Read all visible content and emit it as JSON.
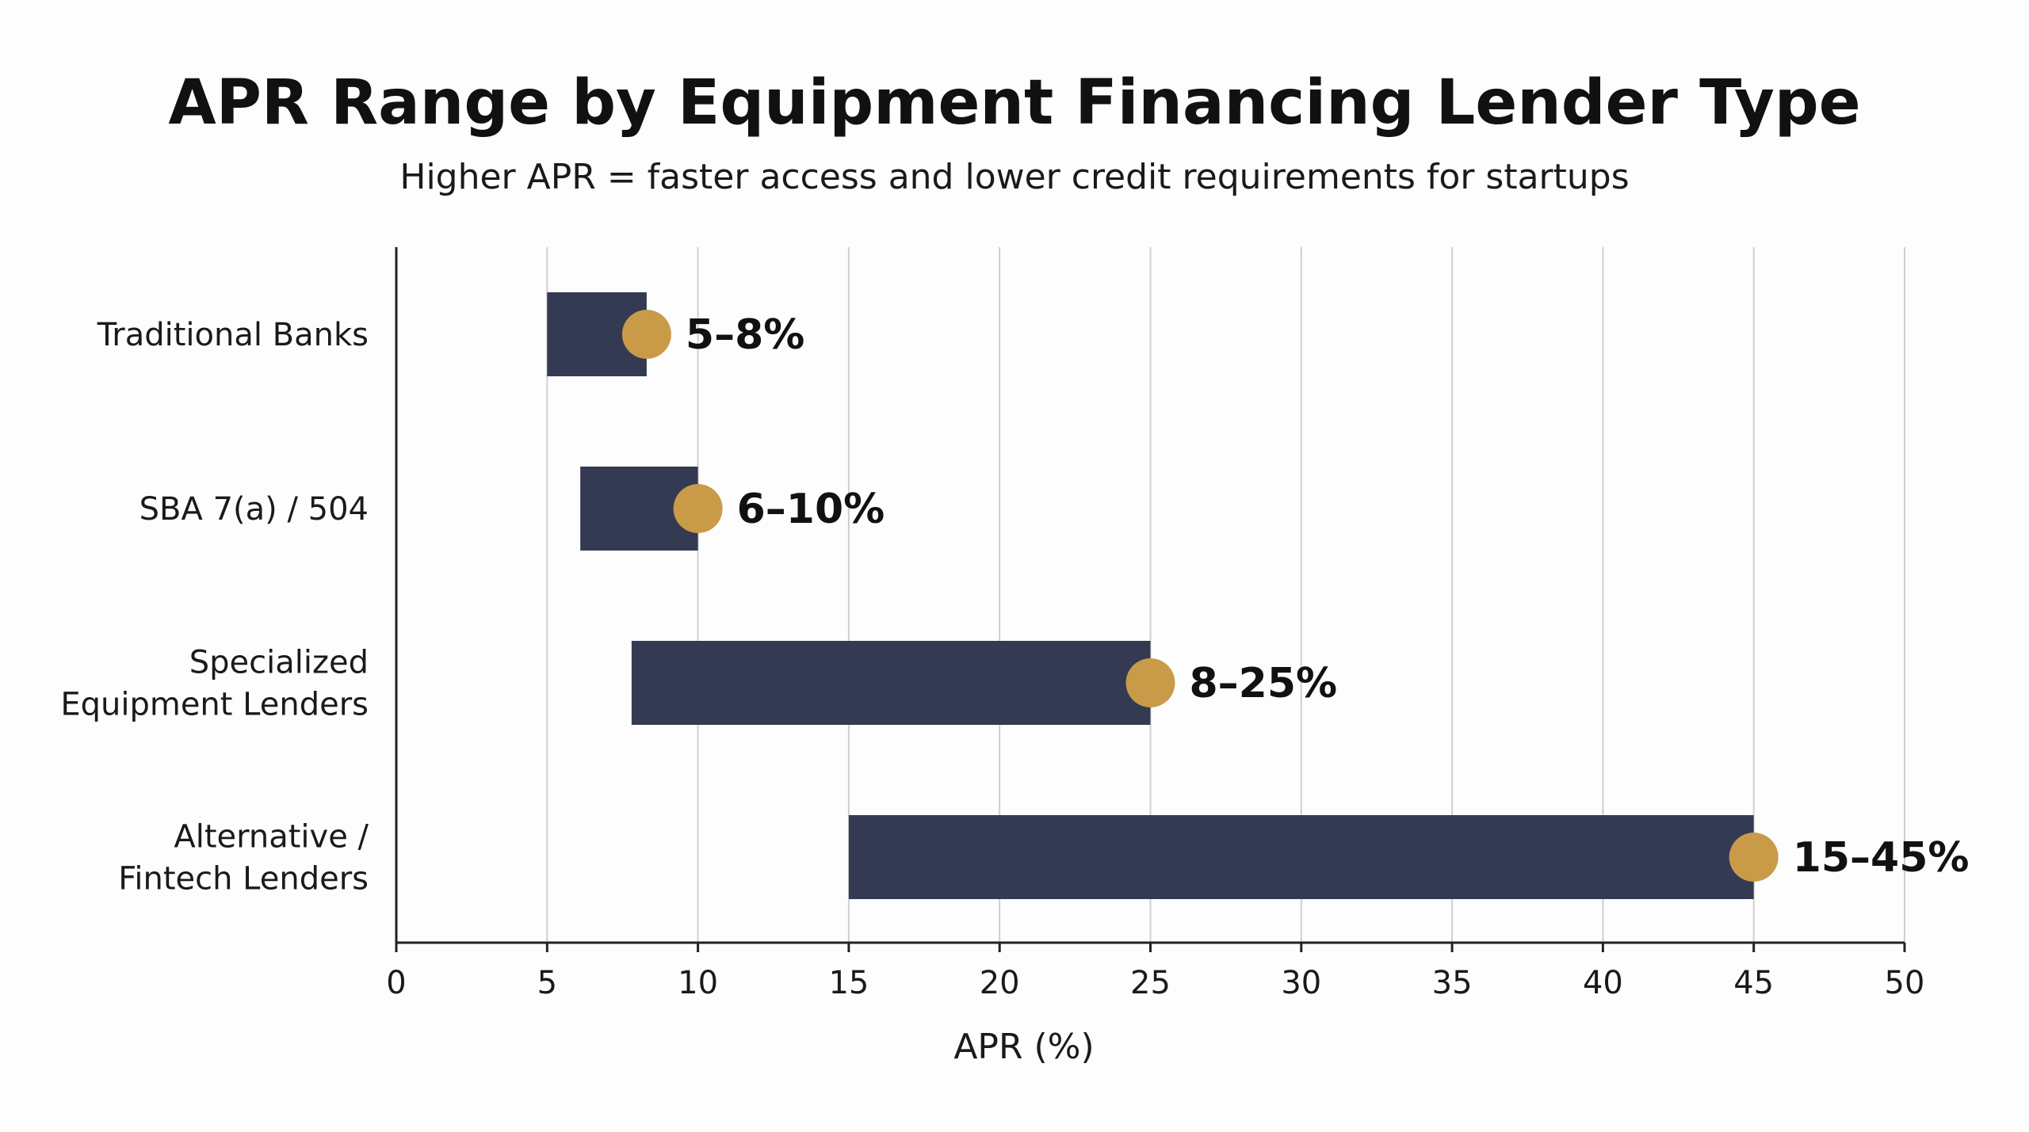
{
  "colors": {
    "bar": "#333a52",
    "marker": "#c99a48",
    "grid": "#cfcfcf",
    "axis": "#222222",
    "background": "#fdfdfd"
  },
  "chart_data": {
    "type": "bar",
    "orientation": "horizontal",
    "style": "range-bar with end marker",
    "title": "APR Range by Equipment Financing Lender Type",
    "subtitle": "Higher APR = faster access and lower credit requirements for startups",
    "xlabel": "APR (%)",
    "ylabel": "",
    "xlim": [
      0,
      50
    ],
    "xticks": [
      0,
      5,
      10,
      15,
      20,
      25,
      30,
      35,
      40,
      45,
      50
    ],
    "grid": "vertical",
    "legend": "none",
    "categories": [
      [
        "Traditional Banks"
      ],
      [
        "SBA 7(a) / 504"
      ],
      [
        "Specialized",
        "Equipment Lenders"
      ],
      [
        "Alternative /",
        "Fintech Lenders"
      ]
    ],
    "ranges": [
      {
        "low": 5,
        "high": 8.3,
        "label": "5–8%"
      },
      {
        "low": 6.1,
        "high": 10,
        "label": "6–10%"
      },
      {
        "low": 7.8,
        "high": 25,
        "label": "8–25%"
      },
      {
        "low": 15,
        "high": 45,
        "label": "15–45%"
      }
    ]
  }
}
